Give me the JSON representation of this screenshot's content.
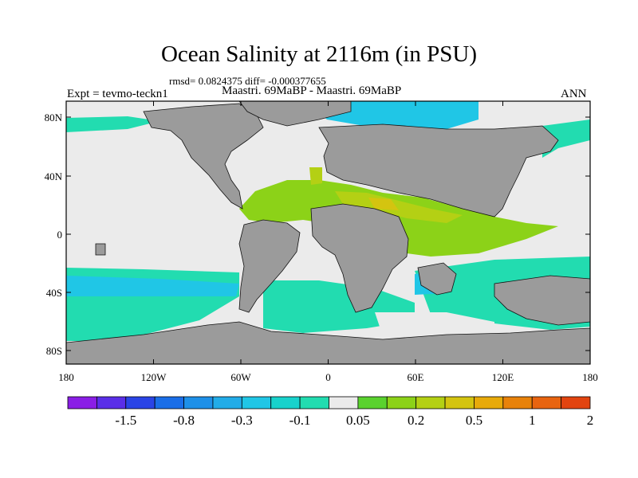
{
  "header": {
    "title": "Ocean Salinity at 2116m (in PSU)",
    "stats": "rmsd= 0.0824375 diff= -0.000377655",
    "experiment": "Expt = tevmo-teckn1",
    "comparison": "Maastri.  69MaBP - Maastri.  69MaBP",
    "period": "ANN"
  },
  "map": {
    "lat_labels": [
      "80N",
      "40N",
      "0",
      "40S",
      "80S"
    ],
    "lon_labels": [
      "180",
      "120W",
      "60W",
      "0",
      "60E",
      "120E",
      "180"
    ],
    "land_color": "#9b9b9b",
    "near_zero_color": "#ebebeb"
  },
  "colorbar": {
    "colors": [
      "#8a1ee6",
      "#5a2ee8",
      "#2a44e6",
      "#1a6ee8",
      "#1e90e8",
      "#22ace8",
      "#20c6e6",
      "#18d2cc",
      "#22dcb0",
      "#ebebeb",
      "#5ad22e",
      "#8cd218",
      "#b4d014",
      "#d4c410",
      "#e8aa0a",
      "#e8820a",
      "#e86410",
      "#e24410"
    ],
    "labels": [
      "-1.5",
      "-0.8",
      "-0.3",
      "-0.1",
      "0.05",
      "0.2",
      "0.5",
      "1",
      "2"
    ]
  }
}
